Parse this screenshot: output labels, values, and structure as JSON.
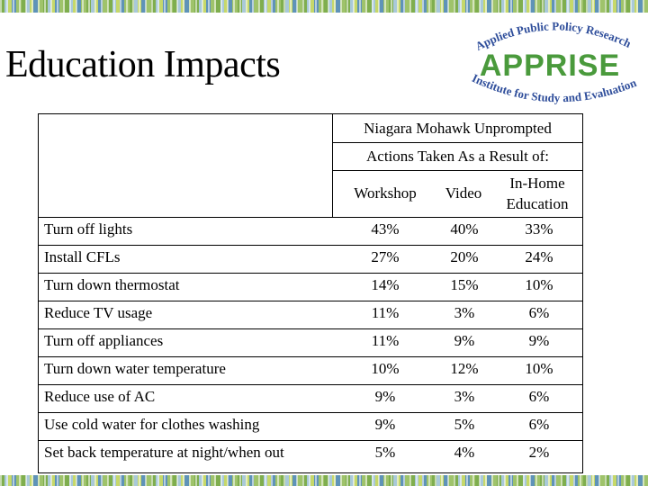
{
  "slide": {
    "title": "Education Impacts"
  },
  "logo": {
    "top_text": "Applied Public Policy Research",
    "name": "APPRISE",
    "bottom_text": "Institute for Study and Evaluation",
    "colors": {
      "green": "#4a9a3c",
      "blue": "#2f4e9b"
    }
  },
  "table": {
    "header_group": "Niagara Mohawk Unprompted",
    "header_sub": "Actions Taken As a Result of:",
    "columns": [
      "Workshop",
      "Video",
      "In-Home Education"
    ],
    "rows": [
      {
        "label": "Turn off lights",
        "values": [
          "43%",
          "40%",
          "33%"
        ]
      },
      {
        "label": "Install CFLs",
        "values": [
          "27%",
          "20%",
          "24%"
        ]
      },
      {
        "label": "Turn down thermostat",
        "values": [
          "14%",
          "15%",
          "10%"
        ]
      },
      {
        "label": "Reduce TV usage",
        "values": [
          "11%",
          "3%",
          "6%"
        ]
      },
      {
        "label": "Turn off appliances",
        "values": [
          "11%",
          "9%",
          "9%"
        ]
      },
      {
        "label": "Turn down water temperature",
        "values": [
          "10%",
          "12%",
          "10%"
        ]
      },
      {
        "label": "Reduce use of AC",
        "values": [
          "9%",
          "3%",
          "6%"
        ]
      },
      {
        "label": "Use cold water for clothes washing",
        "values": [
          "9%",
          "5%",
          "6%"
        ]
      },
      {
        "label": "Set back temperature at night/when out",
        "values": [
          "5%",
          "4%",
          "2%"
        ]
      }
    ]
  }
}
